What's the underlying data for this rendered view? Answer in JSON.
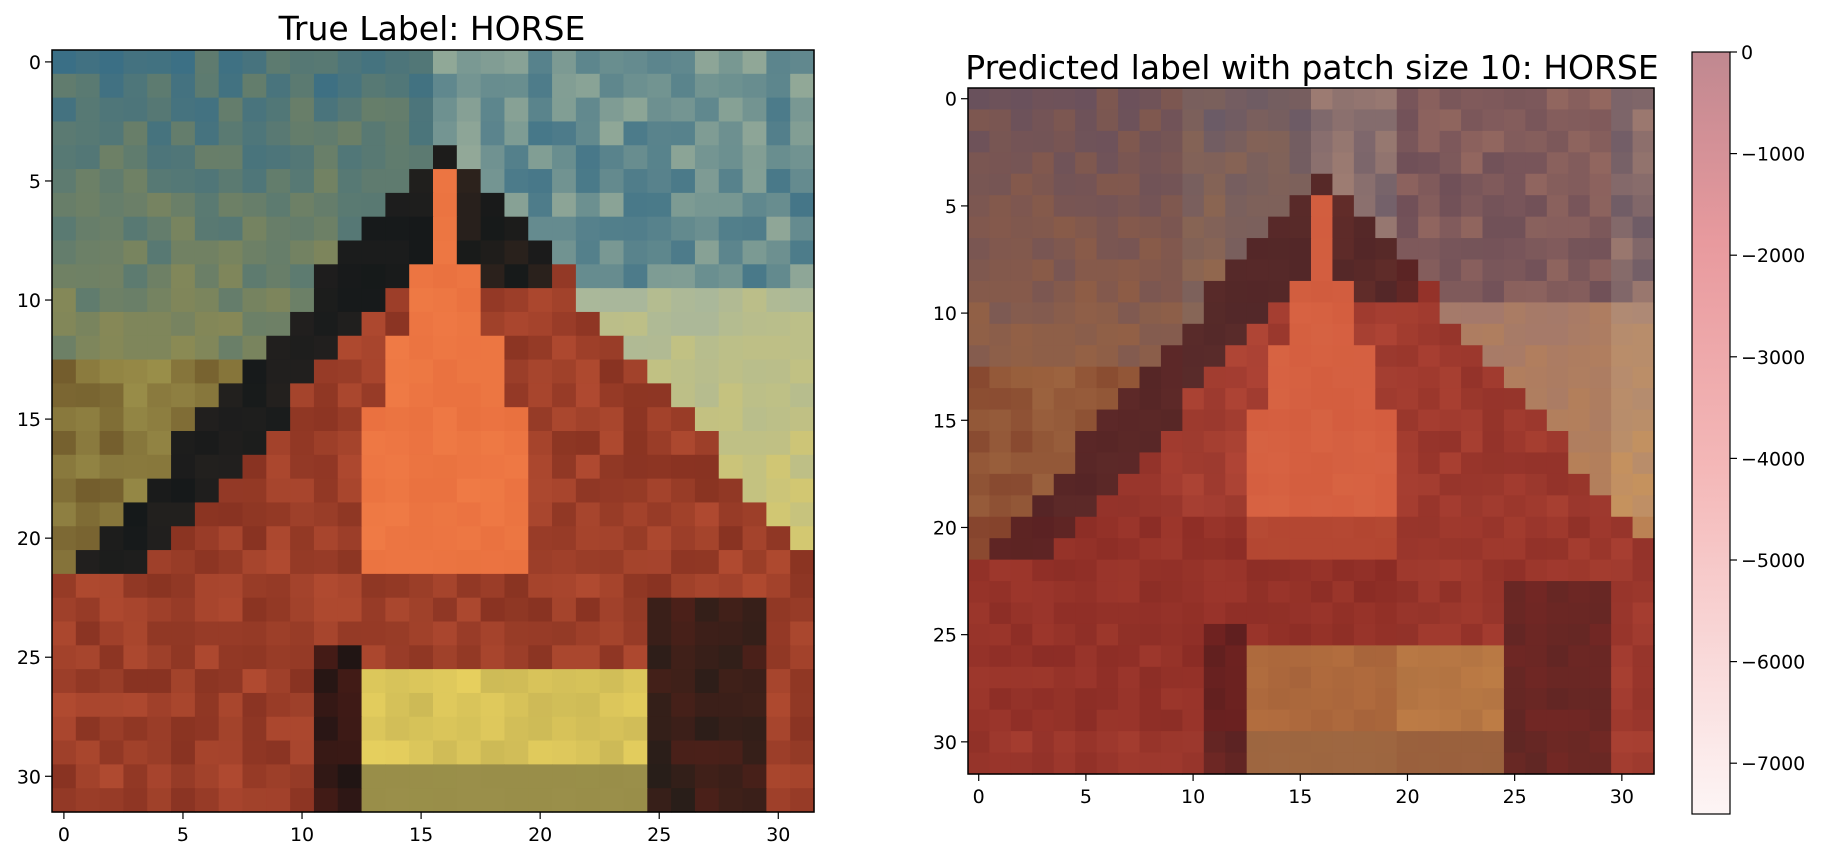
{
  "left_panel": {
    "title": "True Label: HORSE",
    "image_description_name": "horse-image",
    "x_ticks": [
      "0",
      "5",
      "10",
      "15",
      "20",
      "25",
      "30"
    ],
    "y_ticks": [
      "0",
      "5",
      "10",
      "15",
      "20",
      "25",
      "30"
    ]
  },
  "right_panel": {
    "title": "Predicted label with patch size 10: HORSE",
    "x_ticks": [
      "0",
      "5",
      "10",
      "15",
      "20",
      "25",
      "30"
    ],
    "y_ticks": [
      "0",
      "5",
      "10",
      "15",
      "20",
      "25",
      "30"
    ]
  },
  "colorbar": {
    "tick_labels": [
      "0",
      "−1000",
      "−2000",
      "−3000",
      "−4000",
      "−5000",
      "−6000",
      "−7000"
    ],
    "values": [
      0,
      -1000,
      -2000,
      -3000,
      -4000,
      -5000,
      -6000,
      -7000
    ],
    "min": -7500,
    "max": 0,
    "color_top": "#c08890",
    "color_bottom": "#fdf5f5"
  },
  "palette": {
    "sky": "#3a6f86",
    "sky_light": "#a8b79c",
    "mane": "#15191a",
    "blaze": "#ef7a45",
    "coat": "#b04a30",
    "coat_dark": "#6e2318",
    "yellow": "#e6cf5e",
    "olive": "#9a8f4a"
  }
}
